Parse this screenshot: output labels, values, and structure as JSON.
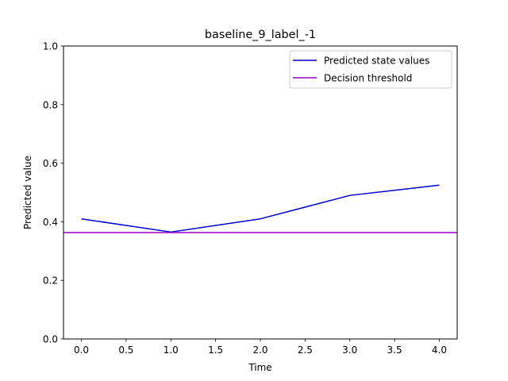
{
  "chart_data": {
    "type": "line",
    "title": "baseline_9_label_-1",
    "xlabel": "Time",
    "ylabel": "Predicted value",
    "xlim": [
      -0.2,
      4.2
    ],
    "ylim": [
      0.0,
      1.0
    ],
    "xticks": [
      0.0,
      0.5,
      1.0,
      1.5,
      2.0,
      2.5,
      3.0,
      3.5,
      4.0
    ],
    "xtick_labels": [
      "0.0",
      "0.5",
      "1.0",
      "1.5",
      "2.0",
      "2.5",
      "3.0",
      "3.5",
      "4.0"
    ],
    "yticks": [
      0.0,
      0.2,
      0.4,
      0.6,
      0.8,
      1.0
    ],
    "ytick_labels": [
      "0.0",
      "0.2",
      "0.4",
      "0.6",
      "0.8",
      "1.0"
    ],
    "grid": false,
    "legend_position": "top-right",
    "series": [
      {
        "name": "Predicted state values",
        "color": "#0000cc",
        "x": [
          0,
          1,
          2,
          3,
          4
        ],
        "y": [
          0.41,
          0.365,
          0.41,
          0.49,
          0.525
        ]
      },
      {
        "name": "Decision threshold",
        "color": "#9900cc",
        "x": [
          -0.2,
          4.2
        ],
        "y": [
          0.363,
          0.363
        ]
      }
    ]
  }
}
